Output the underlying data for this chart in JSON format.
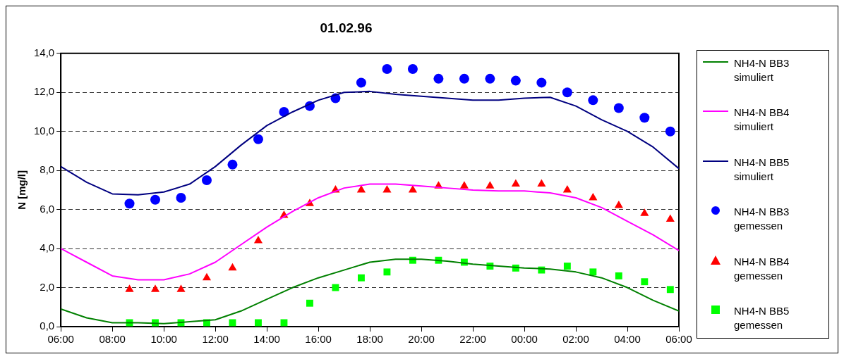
{
  "chart_data": {
    "type": "line",
    "title": "01.02.96",
    "ylabel": "N [mg/l]",
    "xlim": [
      "--02-01T06:00",
      "--02-02T06:00"
    ],
    "xticks": [
      {
        "value": "--02-01T06:00",
        "label": "06:00"
      },
      {
        "value": "--02-01T08:00",
        "label": "08:00"
      },
      {
        "value": "--02-01T10:00",
        "label": "10:00"
      },
      {
        "value": "--02-01T12:00",
        "label": "12:00"
      },
      {
        "value": "--02-01T14:00",
        "label": "14:00"
      },
      {
        "value": "--02-01T16:00",
        "label": "16:00"
      },
      {
        "value": "--02-01T18:00",
        "label": "18:00"
      },
      {
        "value": "--02-01T20:00",
        "label": "20:00"
      },
      {
        "value": "--02-01T22:00",
        "label": "22:00"
      },
      {
        "value": "--02-02T00:00",
        "label": "00:00"
      },
      {
        "value": "--02-02T02:00",
        "label": "02:00"
      },
      {
        "value": "--02-02T04:00",
        "label": "04:00"
      },
      {
        "value": "--02-02T06:00",
        "label": "06:00"
      }
    ],
    "ylim": [
      0,
      14
    ],
    "yticks": [
      {
        "value": 0,
        "label": "0,0"
      },
      {
        "value": 2,
        "label": "2,0"
      },
      {
        "value": 4,
        "label": "4,0"
      },
      {
        "value": 6,
        "label": "6,0"
      },
      {
        "value": 8,
        "label": "8,0"
      },
      {
        "value": 10,
        "label": "10,0"
      },
      {
        "value": 12,
        "label": "12,0"
      },
      {
        "value": 14,
        "label": "14,0"
      }
    ],
    "grid": "y",
    "legend": "right",
    "series": [
      {
        "name": "NH4-N BB3 simuliert",
        "type": "line",
        "marker": "none",
        "color": "#008000",
        "x": [
          "--02-01T06:00",
          "--02-01T07:00",
          "--02-01T08:00",
          "--02-01T09:00",
          "--02-01T10:00",
          "--02-01T11:00",
          "--02-01T12:00",
          "--02-01T13:00",
          "--02-01T14:00",
          "--02-01T15:00",
          "--02-01T16:00",
          "--02-01T17:00",
          "--02-01T18:00",
          "--02-01T19:00",
          "--02-01T20:00",
          "--02-01T21:00",
          "--02-01T22:00",
          "--02-01T23:00",
          "--02-02T00:00",
          "--02-02T01:00",
          "--02-02T02:00",
          "--02-02T03:00",
          "--02-02T04:00",
          "--02-02T05:00",
          "--02-02T06:00"
        ],
        "values": [
          0.9,
          0.45,
          0.2,
          0.2,
          0.15,
          0.25,
          0.35,
          0.8,
          1.4,
          2.0,
          2.5,
          2.9,
          3.3,
          3.45,
          3.45,
          3.35,
          3.2,
          3.1,
          3.0,
          2.95,
          2.8,
          2.5,
          2.0,
          1.35,
          0.8
        ]
      },
      {
        "name": "NH4-N BB4 simuliert",
        "type": "line",
        "marker": "none",
        "color": "#ff00ff",
        "x": [
          "--02-01T06:00",
          "--02-01T07:00",
          "--02-01T08:00",
          "--02-01T09:00",
          "--02-01T10:00",
          "--02-01T11:00",
          "--02-01T12:00",
          "--02-01T13:00",
          "--02-01T14:00",
          "--02-01T15:00",
          "--02-01T16:00",
          "--02-01T17:00",
          "--02-01T18:00",
          "--02-01T19:00",
          "--02-01T20:00",
          "--02-01T21:00",
          "--02-01T22:00",
          "--02-01T23:00",
          "--02-02T00:00",
          "--02-02T01:00",
          "--02-02T02:00",
          "--02-02T03:00",
          "--02-02T04:00",
          "--02-02T05:00",
          "--02-02T06:00"
        ],
        "values": [
          4.0,
          3.3,
          2.6,
          2.4,
          2.4,
          2.7,
          3.3,
          4.2,
          5.1,
          5.9,
          6.6,
          7.1,
          7.3,
          7.3,
          7.2,
          7.1,
          7.0,
          6.95,
          6.95,
          6.85,
          6.6,
          6.1,
          5.4,
          4.7,
          3.9
        ]
      },
      {
        "name": "NH4-N BB5 simuliert",
        "type": "line",
        "marker": "none",
        "color": "#000080",
        "x": [
          "--02-01T06:00",
          "--02-01T07:00",
          "--02-01T08:00",
          "--02-01T09:00",
          "--02-01T10:00",
          "--02-01T11:00",
          "--02-01T12:00",
          "--02-01T13:00",
          "--02-01T14:00",
          "--02-01T15:00",
          "--02-01T16:00",
          "--02-01T17:00",
          "--02-01T18:00",
          "--02-01T19:00",
          "--02-01T20:00",
          "--02-01T21:00",
          "--02-01T22:00",
          "--02-01T23:00",
          "--02-02T00:00",
          "--02-02T01:00",
          "--02-02T02:00",
          "--02-02T03:00",
          "--02-02T04:00",
          "--02-02T05:00",
          "--02-02T06:00"
        ],
        "values": [
          8.2,
          7.4,
          6.8,
          6.75,
          6.9,
          7.3,
          8.2,
          9.3,
          10.3,
          11.0,
          11.6,
          12.0,
          12.05,
          11.9,
          11.8,
          11.7,
          11.6,
          11.6,
          11.7,
          11.75,
          11.3,
          10.6,
          10.0,
          9.2,
          8.1
        ]
      },
      {
        "name": "NH4-N BB3 gemessen",
        "type": "scatter",
        "marker": "circle",
        "color": "#0000ff",
        "x": [
          "--02-01T08:40",
          "--02-01T09:40",
          "--02-01T10:40",
          "--02-01T11:40",
          "--02-01T12:40",
          "--02-01T13:40",
          "--02-01T14:40",
          "--02-01T15:40",
          "--02-01T16:40",
          "--02-01T17:40",
          "--02-01T18:40",
          "--02-01T19:40",
          "--02-01T20:40",
          "--02-01T21:40",
          "--02-01T22:40",
          "--02-01T23:40",
          "--02-02T00:40",
          "--02-02T01:40",
          "--02-02T02:40",
          "--02-02T03:40",
          "--02-02T04:40",
          "--02-02T05:40"
        ],
        "values": [
          6.3,
          6.5,
          6.6,
          7.5,
          8.3,
          9.6,
          11.0,
          11.3,
          11.7,
          12.5,
          13.2,
          13.2,
          12.7,
          12.7,
          12.7,
          12.6,
          12.5,
          12.0,
          11.6,
          11.2,
          10.7,
          10.0
        ]
      },
      {
        "name": "NH4-N BB4 gemessen",
        "type": "scatter",
        "marker": "triangle",
        "color": "#ff0000",
        "x": [
          "--02-01T08:40",
          "--02-01T09:40",
          "--02-01T10:40",
          "--02-01T11:40",
          "--02-01T12:40",
          "--02-01T13:40",
          "--02-01T14:40",
          "--02-01T15:40",
          "--02-01T16:40",
          "--02-01T17:40",
          "--02-01T18:40",
          "--02-01T19:40",
          "--02-01T20:40",
          "--02-01T21:40",
          "--02-01T22:40",
          "--02-01T23:40",
          "--02-02T00:40",
          "--02-02T01:40",
          "--02-02T02:40",
          "--02-02T03:40",
          "--02-02T04:40",
          "--02-02T05:40"
        ],
        "values": [
          1.9,
          1.9,
          1.9,
          2.5,
          3.0,
          4.4,
          5.7,
          6.3,
          7.0,
          7.0,
          7.0,
          7.0,
          7.2,
          7.2,
          7.2,
          7.3,
          7.3,
          7.0,
          6.6,
          6.2,
          5.8,
          5.5
        ]
      },
      {
        "name": "NH4-N BB5 gemessen",
        "type": "scatter",
        "marker": "square",
        "color": "#00ff00",
        "x": [
          "--02-01T08:40",
          "--02-01T09:40",
          "--02-01T10:40",
          "--02-01T11:40",
          "--02-01T12:40",
          "--02-01T13:40",
          "--02-01T14:40",
          "--02-01T15:40",
          "--02-01T16:40",
          "--02-01T17:40",
          "--02-01T18:40",
          "--02-01T19:40",
          "--02-01T20:40",
          "--02-01T21:40",
          "--02-01T22:40",
          "--02-01T23:40",
          "--02-02T00:40",
          "--02-02T01:40",
          "--02-02T02:40",
          "--02-02T03:40",
          "--02-02T04:40",
          "--02-02T05:40"
        ],
        "values": [
          0.2,
          0.2,
          0.2,
          0.2,
          0.2,
          0.2,
          0.2,
          1.2,
          2.0,
          2.5,
          2.8,
          3.4,
          3.4,
          3.3,
          3.1,
          3.0,
          2.9,
          3.1,
          2.8,
          2.6,
          2.3,
          1.9
        ]
      }
    ]
  }
}
